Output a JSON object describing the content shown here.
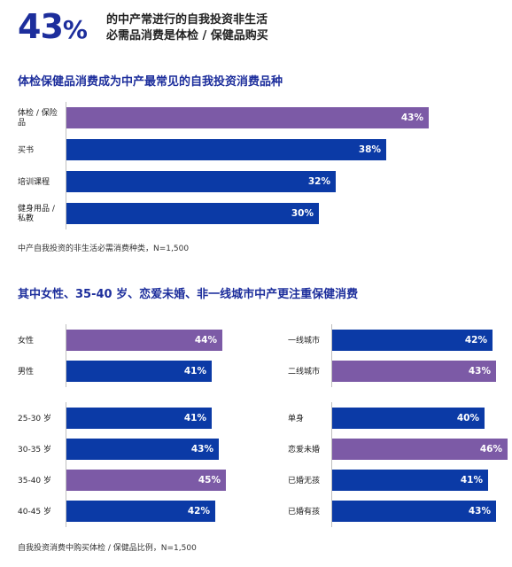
{
  "header": {
    "big_number": "43",
    "big_pct": "%",
    "line1": "的中产常进行的自我投资非生活",
    "line2": "必需品消费是体检 / 保健品购买"
  },
  "colors": {
    "blue": "#0b3aa6",
    "purple": "#7c5aa6",
    "title_blue": "#1d2e9c"
  },
  "section1": {
    "title": "体检保健品消费成为中产最常见的自我投资消费品种",
    "note": "中产自我投资的非生活必需消费种类，N=1,500"
  },
  "section2": {
    "title": "其中女性、35-40 岁、恋爱未婚、非一线城市中产更注重保健消费",
    "note": "自我投资消费中购买体检 / 保健品比例，N=1,500"
  },
  "chart_data": [
    {
      "type": "bar",
      "orientation": "horizontal",
      "title": "体检保健品消费成为中产最常见的自我投资消费品种",
      "categories": [
        "体检 / 保险品",
        "买书",
        "培训课程",
        "健身用品 / 私教"
      ],
      "values": [
        43,
        38,
        32,
        30
      ],
      "labels": [
        "43%",
        "38%",
        "32%",
        "30%"
      ],
      "highlight": [
        true,
        false,
        false,
        false
      ],
      "unit": "%"
    },
    {
      "type": "bar",
      "orientation": "horizontal",
      "group": "gender",
      "categories": [
        "女性",
        "男性"
      ],
      "values": [
        44,
        41
      ],
      "labels": [
        "44%",
        "41%"
      ],
      "highlight": [
        true,
        false
      ],
      "unit": "%"
    },
    {
      "type": "bar",
      "orientation": "horizontal",
      "group": "city",
      "categories": [
        "一线城市",
        "二线城市"
      ],
      "values": [
        42,
        43
      ],
      "labels": [
        "42%",
        "43%"
      ],
      "highlight": [
        false,
        true
      ],
      "unit": "%"
    },
    {
      "type": "bar",
      "orientation": "horizontal",
      "group": "age",
      "categories": [
        "25-30 岁",
        "30-35 岁",
        "35-40 岁",
        "40-45 岁"
      ],
      "values": [
        41,
        43,
        45,
        42
      ],
      "labels": [
        "41%",
        "43%",
        "45%",
        "42%"
      ],
      "highlight": [
        false,
        false,
        true,
        false
      ],
      "unit": "%"
    },
    {
      "type": "bar",
      "orientation": "horizontal",
      "group": "relationship",
      "categories": [
        "单身",
        "恋爱未婚",
        "已婚无孩",
        "已婚有孩"
      ],
      "values": [
        40,
        46,
        41,
        43
      ],
      "labels": [
        "40%",
        "46%",
        "41%",
        "43%"
      ],
      "highlight": [
        false,
        true,
        false,
        false
      ],
      "unit": "%"
    }
  ]
}
